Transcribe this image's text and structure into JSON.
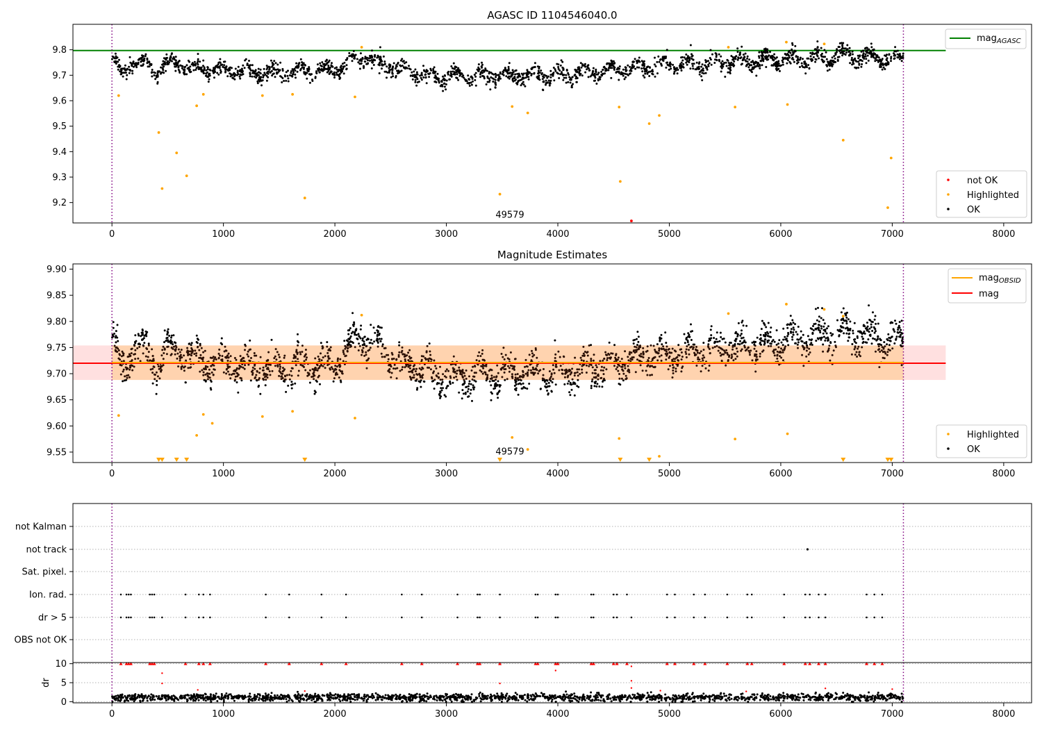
{
  "chart_data": [
    {
      "type": "scatter",
      "title": "AGASC ID 1104546040.0",
      "xlim": [
        -350,
        8250
      ],
      "ylim": [
        9.12,
        9.9
      ],
      "x_ticks": [
        0,
        1000,
        2000,
        3000,
        4000,
        5000,
        6000,
        7000,
        8000
      ],
      "y_ticks": [
        9.2,
        9.3,
        9.4,
        9.5,
        9.6,
        9.7,
        9.8
      ],
      "vlines": [
        0,
        7100
      ],
      "hline": {
        "y": 9.797,
        "x_range": [
          -350,
          7480
        ],
        "color": "#008000"
      },
      "annotation": {
        "text": "49579",
        "x": 3570,
        "y": 9.14
      },
      "legend_top": {
        "position": "top-right",
        "entries": [
          {
            "base": "mag",
            "sub": "AGASC",
            "color": "#008000"
          }
        ]
      },
      "legend_bottom": {
        "position": "bottom-right",
        "entries": [
          {
            "label": "not OK",
            "color": "#ff0000"
          },
          {
            "label": "Highlighted",
            "color": "#ffa500"
          },
          {
            "label": "OK",
            "color": "#000000"
          }
        ]
      },
      "series": [
        {
          "name": "OK",
          "color": "#000000",
          "trend": [
            [
              0,
              9.78
            ],
            [
              80,
              9.7
            ],
            [
              200,
              9.76
            ],
            [
              400,
              9.72
            ],
            [
              500,
              9.75
            ],
            [
              700,
              9.73
            ],
            [
              1000,
              9.72
            ],
            [
              1500,
              9.71
            ],
            [
              2000,
              9.72
            ],
            [
              2250,
              9.77
            ],
            [
              2500,
              9.73
            ],
            [
              3000,
              9.69
            ],
            [
              3500,
              9.7
            ],
            [
              4000,
              9.7
            ],
            [
              4500,
              9.72
            ],
            [
              5000,
              9.74
            ],
            [
              5500,
              9.75
            ],
            [
              6000,
              9.76
            ],
            [
              6400,
              9.77
            ],
            [
              6600,
              9.78
            ],
            [
              7000,
              9.76
            ],
            [
              7100,
              9.77
            ]
          ],
          "spread": 0.025
        },
        {
          "name": "Highlighted",
          "color": "#ffa500",
          "points": [
            [
              60,
              9.62
            ],
            [
              420,
              9.475
            ],
            [
              450,
              9.255
            ],
            [
              580,
              9.395
            ],
            [
              670,
              9.305
            ],
            [
              760,
              9.58
            ],
            [
              820,
              9.625
            ],
            [
              1730,
              9.218
            ],
            [
              2180,
              9.615
            ],
            [
              3480,
              9.233
            ],
            [
              3590,
              9.577
            ],
            [
              3730,
              9.552
            ],
            [
              4550,
              9.575
            ],
            [
              4560,
              9.283
            ],
            [
              4820,
              9.51
            ],
            [
              4910,
              9.542
            ],
            [
              5530,
              9.81
            ],
            [
              5590,
              9.575
            ],
            [
              6050,
              9.83
            ],
            [
              6060,
              9.585
            ],
            [
              6390,
              9.823
            ],
            [
              6560,
              9.445
            ],
            [
              6960,
              9.18
            ],
            [
              6990,
              9.375
            ],
            [
              2240,
              9.81
            ],
            [
              1350,
              9.62
            ],
            [
              1620,
              9.625
            ]
          ]
        },
        {
          "name": "not OK",
          "color": "#ff0000",
          "points": [
            [
              4660,
              9.128
            ]
          ]
        }
      ]
    },
    {
      "type": "scatter",
      "title": "Magnitude Estimates",
      "xlim": [
        -350,
        8250
      ],
      "ylim": [
        9.53,
        9.91
      ],
      "x_ticks": [
        0,
        1000,
        2000,
        3000,
        4000,
        5000,
        6000,
        7000,
        8000
      ],
      "y_ticks": [
        9.55,
        9.6,
        9.65,
        9.7,
        9.75,
        9.8,
        9.85,
        9.9
      ],
      "vlines": [
        0,
        7100
      ],
      "mag_line": {
        "y": 9.72,
        "x_range": [
          -350,
          7480
        ],
        "band": [
          9.688,
          9.754
        ],
        "color": "#ff0000"
      },
      "mag_obsid_line": {
        "y": 9.72,
        "x_range": [
          0,
          7100
        ],
        "band": [
          9.688,
          9.754
        ],
        "color": "#ffa500"
      },
      "annotation": {
        "text": "49579",
        "x": 3570,
        "y": 9.545
      },
      "legend_top": {
        "position": "top-right",
        "entries": [
          {
            "base": "mag",
            "sub": "OBSID",
            "color": "#ffa500"
          },
          {
            "base": "mag",
            "sub": "",
            "color": "#ff0000"
          }
        ]
      },
      "legend_bottom": {
        "position": "bottom-right",
        "entries": [
          {
            "label": "Highlighted",
            "color": "#ffa500"
          },
          {
            "label": "OK",
            "color": "#000000"
          }
        ]
      },
      "series": [
        {
          "name": "OK",
          "color": "#000000",
          "trend": [
            [
              0,
              9.78
            ],
            [
              80,
              9.7
            ],
            [
              200,
              9.76
            ],
            [
              400,
              9.72
            ],
            [
              500,
              9.75
            ],
            [
              700,
              9.73
            ],
            [
              1000,
              9.72
            ],
            [
              1500,
              9.71
            ],
            [
              2000,
              9.72
            ],
            [
              2250,
              9.77
            ],
            [
              2500,
              9.73
            ],
            [
              3000,
              9.69
            ],
            [
              3500,
              9.7
            ],
            [
              4000,
              9.7
            ],
            [
              4500,
              9.72
            ],
            [
              5000,
              9.74
            ],
            [
              5500,
              9.75
            ],
            [
              6000,
              9.76
            ],
            [
              6400,
              9.77
            ],
            [
              6600,
              9.78
            ],
            [
              7000,
              9.76
            ],
            [
              7100,
              9.77
            ]
          ],
          "spread": 0.025
        },
        {
          "name": "Highlighted",
          "color": "#ffa500",
          "points": [
            [
              60,
              9.62
            ],
            [
              760,
              9.582
            ],
            [
              820,
              9.622
            ],
            [
              900,
              9.605
            ],
            [
              1350,
              9.618
            ],
            [
              1620,
              9.628
            ],
            [
              2180,
              9.615
            ],
            [
              2240,
              9.812
            ],
            [
              3590,
              9.578
            ],
            [
              3730,
              9.555
            ],
            [
              4550,
              9.576
            ],
            [
              4910,
              9.542
            ],
            [
              5530,
              9.815
            ],
            [
              5590,
              9.575
            ],
            [
              6050,
              9.833
            ],
            [
              6060,
              9.585
            ],
            [
              6390,
              9.823
            ],
            [
              6560,
              9.81
            ]
          ],
          "lower_limits": [
            420,
            450,
            580,
            670,
            1730,
            3480,
            4560,
            4820,
            6560,
            6960,
            6990
          ]
        }
      ]
    },
    {
      "type": "scatter",
      "title": "",
      "xlim": [
        -350,
        8250
      ],
      "categories": [
        "not Kalman",
        "not track",
        "Sat. pixel.",
        "Ion. rad.",
        "dr > 5",
        "OBS not OK"
      ],
      "vlines": [
        0,
        7100
      ],
      "flags": {
        "not_track": [
          6240
        ],
        "ion_rad": [
          80,
          130,
          150,
          170,
          340,
          360,
          380,
          660,
          780,
          820,
          880,
          1380,
          1590,
          1880,
          2100,
          2600,
          2780,
          3100,
          3280,
          3300,
          3480,
          3800,
          3820,
          3980,
          4000,
          4300,
          4320,
          4500,
          4530,
          4620,
          4980,
          5050,
          5220,
          5320,
          5520,
          5700,
          5740,
          6030,
          6220,
          6260,
          6340,
          6400,
          6770,
          6840,
          6910
        ],
        "dr_gt_5": [
          80,
          130,
          150,
          170,
          340,
          360,
          380,
          450,
          660,
          780,
          820,
          880,
          1380,
          1590,
          1880,
          2100,
          2600,
          2780,
          3100,
          3280,
          3300,
          3480,
          3800,
          3820,
          3980,
          4000,
          4300,
          4320,
          4500,
          4530,
          4660,
          4980,
          5050,
          5220,
          5320,
          5520,
          5700,
          5740,
          6030,
          6220,
          6260,
          6340,
          6400,
          6770,
          6840,
          6910
        ]
      }
    },
    {
      "type": "scatter",
      "title": "",
      "ylabel": "dr",
      "xlim": [
        -350,
        8250
      ],
      "ylim": [
        -0.3,
        10.3
      ],
      "x_ticks": [
        0,
        1000,
        2000,
        3000,
        4000,
        5000,
        6000,
        7000,
        8000
      ],
      "y_ticks": [
        0,
        5,
        10
      ],
      "vlines": [
        0,
        7100
      ],
      "series": [
        {
          "name": "OK",
          "color": "#000000",
          "mean": 1.1,
          "spread": 0.9
        },
        {
          "name": "not OK",
          "color": "#ff0000",
          "capped_x": [
            80,
            130,
            150,
            170,
            340,
            360,
            380,
            660,
            780,
            820,
            880,
            1380,
            1590,
            1880,
            2100,
            2600,
            2780,
            3100,
            3280,
            3300,
            3480,
            3800,
            3820,
            3980,
            4000,
            4300,
            4320,
            4500,
            4530,
            4620,
            4980,
            5050,
            5220,
            5320,
            5520,
            5700,
            5740,
            6030,
            6220,
            6260,
            6340,
            6400,
            6770,
            6840,
            6910
          ],
          "points": [
            [
              450,
              7.5
            ],
            [
              450,
              4.8
            ],
            [
              3480,
              4.8
            ],
            [
              3980,
              8.2
            ],
            [
              4660,
              5.5
            ],
            [
              4660,
              3.6
            ],
            [
              4660,
              9.3
            ],
            [
              6400,
              3.5
            ],
            [
              7000,
              3.3
            ],
            [
              770,
              3.1
            ],
            [
              1730,
              2.8
            ],
            [
              5690,
              2.7
            ],
            [
              4920,
              2.9
            ]
          ]
        }
      ]
    }
  ]
}
